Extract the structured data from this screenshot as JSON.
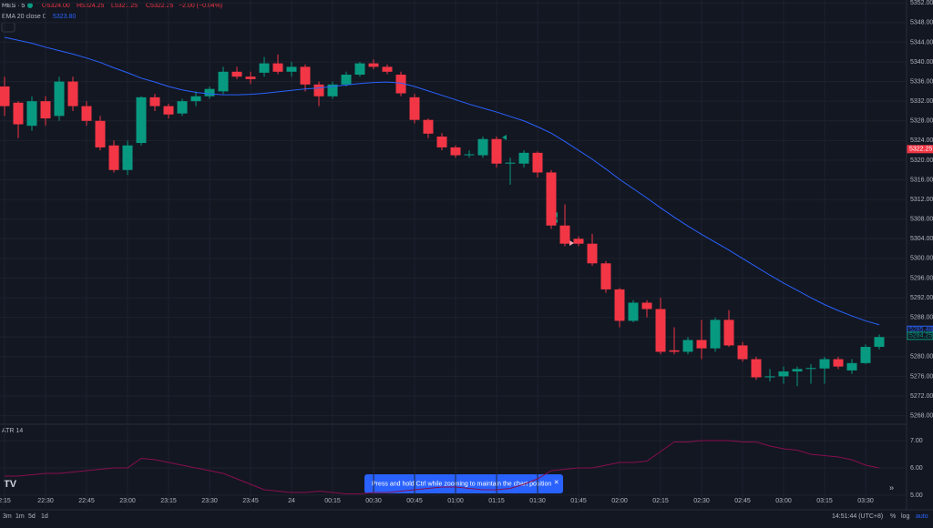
{
  "header": {
    "symbol": "MES · 5",
    "open": "O5324.00",
    "high": "H5324.25",
    "low": "L5321.25",
    "close": "C5322.25",
    "change": "−2.00 (−0.04%)",
    "ema_label": "EMA 20 close 0",
    "ema_value": "5323.80",
    "atr_label": "ATR 14"
  },
  "toast": "Press and hold Ctrl while zooming to maintain the chart position",
  "footer": {
    "ranges": [
      "3m",
      "1m",
      "5d",
      "1d"
    ],
    "clock": "14:51:44 (UTC+8)",
    "options": [
      "%",
      "log",
      "auto"
    ]
  },
  "chart_data": [
    {
      "type": "candlestick",
      "up_color": "#089981",
      "down_color": "#f23645",
      "open": [
        5335,
        5331.7,
        5327,
        5332,
        5329,
        5336,
        5331,
        5328,
        5323,
        5318,
        5323.5,
        5332.8,
        5331,
        5329.5,
        5332,
        5333,
        5334,
        5338,
        5337,
        5337.8,
        5339.7,
        5338,
        5339,
        5335.4,
        5333,
        5335.4,
        5337.4,
        5339.7,
        5339,
        5337.4,
        5332.8,
        5328.2,
        5324.8,
        5322.6,
        5321,
        5321,
        5324.3,
        5319.3,
        5319.3,
        5321.5,
        5317.5,
        5306.7,
        5304,
        5303,
        5299,
        5293.7,
        5287.3,
        5291,
        5289.7,
        5281.3,
        5281,
        5283.4,
        5281.7,
        5287.5,
        5282.3,
        5279.5,
        5275.8,
        5276,
        5277,
        5277.5,
        5277.6,
        5279.5,
        5277.2,
        5278.7,
        5282
      ],
      "high": [
        5337,
        5332,
        5333,
        5333,
        5337,
        5337,
        5332,
        5329,
        5324,
        5324,
        5333,
        5333.5,
        5331.5,
        5332.5,
        5334,
        5335,
        5339,
        5339,
        5338,
        5341,
        5341.5,
        5340,
        5339.5,
        5336,
        5336,
        5338,
        5340,
        5340.5,
        5339.5,
        5338,
        5333.5,
        5328.5,
        5325.5,
        5323,
        5322,
        5324.8,
        5324.8,
        5320.5,
        5322,
        5321.8,
        5318,
        5311,
        5304.5,
        5305,
        5299.5,
        5294,
        5291.5,
        5291.5,
        5292,
        5286,
        5284,
        5287.5,
        5288,
        5289.5,
        5283,
        5280,
        5277.5,
        5278,
        5278,
        5278.5,
        5280,
        5280,
        5279.5,
        5282.5,
        5284.5
      ],
      "low": [
        5329,
        5324.5,
        5326,
        5327,
        5328,
        5330,
        5327,
        5322,
        5317.5,
        5317,
        5323,
        5330,
        5328.5,
        5329,
        5331,
        5332.5,
        5333.5,
        5336.5,
        5335.5,
        5337,
        5337.5,
        5337,
        5334,
        5331,
        5332.5,
        5335,
        5337,
        5338.5,
        5337.5,
        5333,
        5327.5,
        5324.5,
        5322,
        5320.5,
        5320.5,
        5320.5,
        5318.5,
        5315,
        5318.5,
        5316.5,
        5306,
        5302.5,
        5302.5,
        5298.5,
        5293,
        5286,
        5287,
        5288,
        5280.5,
        5280.5,
        5280.5,
        5279.5,
        5281,
        5282,
        5279,
        5275.3,
        5275,
        5274.5,
        5274,
        5274.5,
        5274.5,
        5277.5,
        5276.5,
        5278.5,
        5281.5
      ],
      "close": [
        5331,
        5327.3,
        5332,
        5328.5,
        5336,
        5331,
        5328,
        5322.6,
        5318,
        5323,
        5332.8,
        5331,
        5329.3,
        5332,
        5333,
        5334.5,
        5338,
        5337,
        5336.5,
        5339.7,
        5338,
        5339,
        5335.4,
        5333,
        5335.4,
        5337.4,
        5339.7,
        5339,
        5338,
        5333.6,
        5328.2,
        5325.4,
        5322.6,
        5321,
        5321.2,
        5324.3,
        5319.3,
        5319.5,
        5321.5,
        5317.5,
        5306.7,
        5303,
        5303,
        5299,
        5293.7,
        5287.3,
        5291,
        5289.7,
        5281,
        5281,
        5283.4,
        5281.7,
        5287.5,
        5282.3,
        5279.5,
        5275.8,
        5276,
        5277,
        5277.5,
        5277.7,
        5279.5,
        5278,
        5278.7,
        5282,
        5284
      ],
      "series": [
        {
          "name": "EMA 20",
          "color": "#2962ff",
          "values": [
            5345,
            5344.4,
            5343.8,
            5343,
            5342.3,
            5341.6,
            5340.8,
            5339.9,
            5338.8,
            5337.8,
            5336.7,
            5335.9,
            5335,
            5334.3,
            5333.8,
            5333.5,
            5333.3,
            5333.3,
            5333.4,
            5333.6,
            5333.9,
            5334.2,
            5334.5,
            5334.7,
            5335,
            5335.3,
            5335.6,
            5335.8,
            5335.9,
            5335.7,
            5335,
            5334.1,
            5333.2,
            5332.3,
            5331.4,
            5330.6,
            5329.8,
            5328.9,
            5328,
            5326.8,
            5325.5,
            5323.8,
            5322,
            5320.2,
            5318.2,
            5316.1,
            5314.2,
            5312.3,
            5310.3,
            5308.4,
            5306.6,
            5304.9,
            5303.3,
            5301.7,
            5300,
            5298.3,
            5296.6,
            5295,
            5293.5,
            5292,
            5290.6,
            5289.4,
            5288.3,
            5287.3,
            5286.5
          ]
        }
      ],
      "ylim": [
        5352.6,
        5267
      ],
      "yticks": [
        {
          "value": 5352,
          "label": "5352.00"
        },
        {
          "value": 5348,
          "label": "5348.00"
        },
        {
          "value": 5344,
          "label": "5344.00"
        },
        {
          "value": 5340,
          "label": "5340.00"
        },
        {
          "value": 5336,
          "label": "5336.00"
        },
        {
          "value": 5332,
          "label": "5332.00"
        },
        {
          "value": 5328,
          "label": "5328.00"
        },
        {
          "value": 5324,
          "label": "5324.00"
        },
        {
          "value": 5320,
          "label": "5320.00"
        },
        {
          "value": 5316,
          "label": "5316.00"
        },
        {
          "value": 5312,
          "label": "5312.00"
        },
        {
          "value": 5308,
          "label": "5308.00"
        },
        {
          "value": 5304,
          "label": "5304.00"
        },
        {
          "value": 5300,
          "label": "5300.00"
        },
        {
          "value": 5296,
          "label": "5296.00"
        },
        {
          "value": 5292,
          "label": "5292.00"
        },
        {
          "value": 5288,
          "label": "5288.00"
        },
        {
          "value": 5284,
          "label": "5284.00"
        },
        {
          "value": 5280,
          "label": "5280.00"
        },
        {
          "value": 5276,
          "label": "5276.00"
        },
        {
          "value": 5272,
          "label": "5272.00"
        },
        {
          "value": 5268,
          "label": "5268.00"
        }
      ],
      "price_tags": [
        {
          "value": 5322.25,
          "label": "5322.25",
          "color": "#f23645"
        },
        {
          "value": 5285.48,
          "label": "5285.48",
          "color": "#2962ff"
        },
        {
          "value": 5284.25,
          "label": "5284.25",
          "color": "#089981"
        }
      ],
      "xticks": [
        {
          "value": 0,
          "label": "2:15"
        },
        {
          "value": 3,
          "label": "22:30"
        },
        {
          "value": 6,
          "label": "22:45"
        },
        {
          "value": 9,
          "label": "23:00"
        },
        {
          "value": 12,
          "label": "23:15"
        },
        {
          "value": 15,
          "label": "23:30"
        },
        {
          "value": 18,
          "label": "23:45"
        },
        {
          "value": 21,
          "label": "24"
        },
        {
          "value": 24,
          "label": "00:15"
        },
        {
          "value": 27,
          "label": "00:30"
        },
        {
          "value": 30,
          "label": "00:45"
        },
        {
          "value": 33,
          "label": "01:00"
        },
        {
          "value": 36,
          "label": "01:15"
        },
        {
          "value": 39,
          "label": "01:30"
        },
        {
          "value": 42,
          "label": "01:45"
        },
        {
          "value": 45,
          "label": "02:00"
        },
        {
          "value": 48,
          "label": "02:15"
        },
        {
          "value": 51,
          "label": "02:30"
        },
        {
          "value": 54,
          "label": "02:45"
        },
        {
          "value": 57,
          "label": "03:00"
        },
        {
          "value": 60,
          "label": "03:15"
        },
        {
          "value": 63,
          "label": "03:30"
        }
      ],
      "grid": true
    },
    {
      "type": "line",
      "series": [
        {
          "name": "ATR 14",
          "color": "#880e4f",
          "values": [
            5.7,
            5.7,
            5.75,
            5.8,
            5.8,
            5.85,
            5.9,
            5.95,
            6.0,
            6.0,
            6.35,
            6.3,
            6.2,
            6.1,
            6.0,
            5.9,
            5.8,
            5.6,
            5.4,
            5.2,
            5.15,
            5.1,
            5.1,
            5.15,
            5.1,
            5.05,
            5.05,
            5.1,
            5.1,
            5.15,
            5.2,
            5.25,
            5.3,
            5.3,
            5.25,
            5.2,
            5.2,
            5.25,
            5.4,
            5.6,
            5.9,
            5.95,
            6.0,
            6.0,
            6.1,
            6.2,
            6.2,
            6.25,
            6.6,
            6.95,
            6.95,
            7.0,
            7.0,
            7.0,
            6.95,
            6.95,
            6.8,
            6.7,
            6.65,
            6.5,
            6.45,
            6.4,
            6.3,
            6.1,
            6.0
          ]
        }
      ],
      "ylim": [
        7.6,
        4.6
      ],
      "yticks": [
        {
          "value": 7,
          "label": "7.00"
        },
        {
          "value": 6,
          "label": "6.00"
        },
        {
          "value": 5,
          "label": "5.00"
        }
      ],
      "grid": true
    }
  ]
}
